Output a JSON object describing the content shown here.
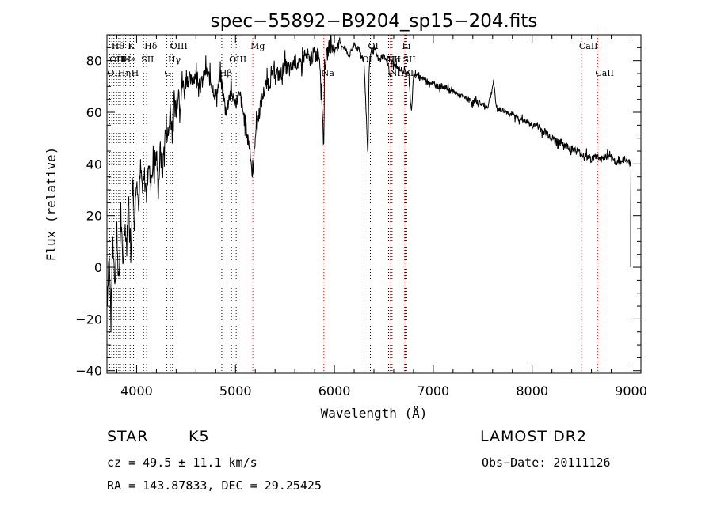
{
  "chart_data": {
    "type": "line",
    "title": "spec−55892−B9204_sp15−204.fits",
    "xlabel": "Wavelength (Å)",
    "ylabel": "Flux (relative)",
    "xlim": [
      3700,
      9100
    ],
    "ylim": [
      -41,
      90
    ],
    "xticks": [
      4000,
      5000,
      6000,
      7000,
      8000,
      9000
    ],
    "yticks": [
      -40,
      -20,
      0,
      20,
      40,
      60,
      80
    ],
    "ytick_labels": [
      "−40",
      "−20",
      "0",
      "20",
      "40",
      "60",
      "80"
    ],
    "grid": false,
    "series": [
      {
        "x": [
          3700,
          3720,
          3740,
          3760,
          3780,
          3800,
          3820,
          3840,
          3860,
          3880,
          3900,
          3920,
          3940,
          3960,
          3980,
          4000,
          4020,
          4040,
          4060,
          4080,
          4100,
          4120,
          4140,
          4160,
          4180,
          4200,
          4220,
          4240,
          4260,
          4280,
          4300,
          4320,
          4340,
          4360,
          4380,
          4400,
          4420,
          4440,
          4460,
          4480,
          4500,
          4550,
          4600,
          4650,
          4700,
          4750,
          4800,
          4850,
          4900,
          4950,
          5000,
          5050,
          5100,
          5150,
          5170,
          5185,
          5200,
          5250,
          5300,
          5350,
          5400,
          5450,
          5500,
          5550,
          5600,
          5650,
          5700,
          5750,
          5800,
          5850,
          5880,
          5893,
          5900,
          5950,
          6000,
          6050,
          6100,
          6150,
          6200,
          6250,
          6300,
          6340,
          6350,
          6360,
          6400,
          6450,
          6500,
          6550,
          6563,
          6580,
          6600,
          6650,
          6700,
          6750,
          6780,
          6800,
          6850,
          6900,
          6950,
          7000,
          7050,
          7100,
          7150,
          7200,
          7250,
          7300,
          7350,
          7400,
          7450,
          7500,
          7550,
          7590,
          7610,
          7630,
          7650,
          7700,
          7750,
          7800,
          7850,
          7900,
          7950,
          8000,
          8050,
          8100,
          8150,
          8200,
          8250,
          8300,
          8350,
          8400,
          8450,
          8500,
          8550,
          8600,
          8650,
          8700,
          8750,
          8800,
          8850,
          8900,
          8950,
          9000
        ],
        "values": [
          -15,
          5,
          -18,
          10,
          -5,
          15,
          -8,
          20,
          0,
          18,
          8,
          30,
          2,
          35,
          15,
          40,
          22,
          38,
          30,
          35,
          28,
          42,
          32,
          40,
          36,
          44,
          30,
          46,
          36,
          48,
          55,
          50,
          62,
          52,
          65,
          60,
          70,
          64,
          72,
          68,
          73,
          72,
          75,
          70,
          76,
          72,
          66,
          74,
          60,
          68,
          64,
          66,
          55,
          45,
          35,
          40,
          52,
          62,
          70,
          72,
          76,
          74,
          78,
          76,
          80,
          78,
          82,
          80,
          83,
          82,
          60,
          45,
          78,
          86,
          84,
          87,
          85,
          82,
          86,
          84,
          80,
          42,
          75,
          82,
          85,
          80,
          82,
          78,
          72,
          80,
          78,
          77,
          76,
          75,
          60,
          74,
          74,
          73,
          72,
          71,
          70,
          70,
          69,
          68,
          67,
          66,
          65,
          64,
          64,
          63,
          62,
          68,
          72,
          64,
          61,
          61,
          60,
          59,
          58,
          57,
          56,
          55,
          55,
          53,
          52,
          50,
          49,
          48,
          47,
          46,
          45,
          44,
          43,
          42,
          43,
          42,
          43,
          42,
          41,
          41,
          42,
          40
        ]
      }
    ],
    "lines": [
      {
        "x": 3727,
        "color": "#000000",
        "labels": [
          {
            "text": "OII",
            "row": 2
          }
        ]
      },
      {
        "x": 3750,
        "color": "#000000",
        "labels": [
          {
            "text": "OII",
            "row": 1
          }
        ]
      },
      {
        "x": 3770,
        "color": "#000000",
        "labels": [
          {
            "text": "Hθ",
            "row": 0
          }
        ]
      },
      {
        "x": 3797,
        "color": "#000000",
        "labels": []
      },
      {
        "x": 3820,
        "color": "#000000",
        "labels": [
          {
            "text": "He",
            "row": 1
          }
        ]
      },
      {
        "x": 3835,
        "color": "#000000",
        "labels": [
          {
            "text": "Hη",
            "row": 2
          }
        ]
      },
      {
        "x": 3869,
        "color": "#000000",
        "labels": [
          {
            "text": "I",
            "row": 1
          }
        ]
      },
      {
        "x": 3889,
        "color": "#000000",
        "labels": [
          {
            "text": "He",
            "row": 1
          }
        ]
      },
      {
        "x": 3934,
        "color": "#000000",
        "labels": [
          {
            "text": "K",
            "row": 0
          }
        ]
      },
      {
        "x": 3969,
        "color": "#000000",
        "labels": [
          {
            "text": "H",
            "row": 2
          }
        ]
      },
      {
        "x": 4070,
        "color": "#000000",
        "labels": [
          {
            "text": "SII",
            "row": 1
          }
        ]
      },
      {
        "x": 4102,
        "color": "#000000",
        "labels": [
          {
            "text": "Hδ",
            "row": 0
          }
        ]
      },
      {
        "x": 4304,
        "color": "#000000",
        "labels": [
          {
            "text": "G",
            "row": 2
          }
        ]
      },
      {
        "x": 4341,
        "color": "#000000",
        "labels": [
          {
            "text": "Hγ",
            "row": 1
          }
        ]
      },
      {
        "x": 4363,
        "color": "#000000",
        "labels": [
          {
            "text": "OIII",
            "row": 0
          }
        ]
      },
      {
        "x": 4861,
        "color": "#000000",
        "labels": [
          {
            "text": "Hβ",
            "row": 2
          }
        ]
      },
      {
        "x": 4959,
        "color": "#000000",
        "labels": [
          {
            "text": "OIII",
            "row": 1
          }
        ]
      },
      {
        "x": 5007,
        "color": "#000000",
        "labels": []
      },
      {
        "x": 5175,
        "color": "#ff0000",
        "labels": [
          {
            "text": "Mg",
            "row": 0
          }
        ]
      },
      {
        "x": 5893,
        "color": "#ff0000",
        "labels": [
          {
            "text": "Na",
            "row": 2
          }
        ]
      },
      {
        "x": 6300,
        "color": "#000000",
        "labels": [
          {
            "text": "OI",
            "row": 1
          }
        ]
      },
      {
        "x": 6364,
        "color": "#000000",
        "labels": [
          {
            "text": "OI",
            "row": 0
          }
        ]
      },
      {
        "x": 6548,
        "color": "#000000",
        "labels": [
          {
            "text": "NII",
            "row": 1
          }
        ]
      },
      {
        "x": 6563,
        "color": "#ff0000",
        "labels": [
          {
            "text": "Hα",
            "row": 1
          }
        ]
      },
      {
        "x": 6583,
        "color": "#000000",
        "labels": [
          {
            "text": "NII",
            "row": 2
          }
        ]
      },
      {
        "x": 6708,
        "color": "#ff0000",
        "labels": [
          {
            "text": "Li",
            "row": 0
          }
        ]
      },
      {
        "x": 6716,
        "color": "#000000",
        "labels": [
          {
            "text": "SII",
            "row": 1
          }
        ]
      },
      {
        "x": 6731,
        "color": "#000000",
        "labels": [
          {
            "text": "SII",
            "row": 2
          }
        ]
      },
      {
        "x": 8498,
        "color": "#ff0000",
        "labels": [
          {
            "text": "CaII",
            "row": 0
          }
        ]
      },
      {
        "x": 8662,
        "color": "#ff0000",
        "labels": [
          {
            "text": "CaII",
            "row": 2
          }
        ]
      }
    ]
  },
  "info": {
    "object_class": "STAR",
    "subclass": "K5",
    "survey": "LAMOST DR2",
    "velocity": "cz = 49.5 ± 11.1 km/s",
    "obs_date": "Obs−Date: 20111126",
    "coords": "RA = 143.87833, DEC =  29.25425"
  }
}
